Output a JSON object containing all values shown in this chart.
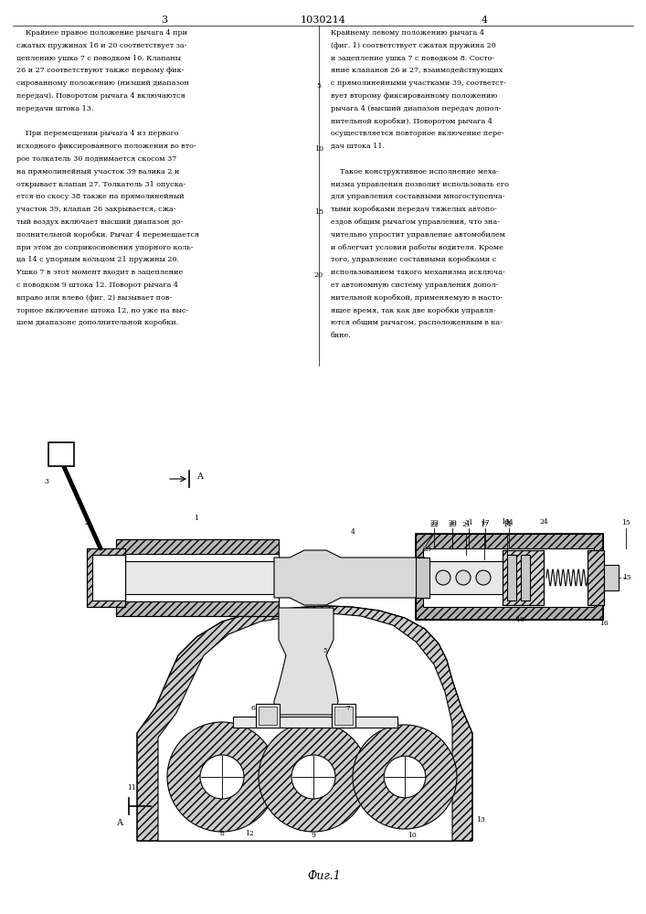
{
  "page_width": 7.07,
  "page_height": 10.0,
  "dpi": 100,
  "bg_color": "#ffffff",
  "text_color": "#000000",
  "line_color": "#000000",
  "header": "1030214",
  "page_left": "3",
  "page_right": "4",
  "fig_label": "Фиг.1",
  "col_left_text": [
    "    Крайнее правое положение рычага 4 при",
    "сжатых пружинах 16 и 20 соответствует за-",
    "цеплению ушка 7 с поводком 10. Клапаны",
    "26 и 27 соответствуют также первому фик-",
    "сированному положению (низший диапазон",
    "передач). Поворотом рычага 4 включаются",
    "передачи штока 13.",
    "",
    "    При перемещении рычага 4 из первого",
    "исходного фиксированного положения во вто-",
    "рое толкатель 30 поднимается скосом 37",
    "на прямолинейный участок 39 валика 2 и",
    "открывает клапан 27. Толкатель 31 опуска-",
    "ется по скосу 38 также на прямолинейный",
    "участок 39, клапан 26 закрывается, сжа-",
    "тый воздух включает высший диапазон до-",
    "полнительной коробки. Рычаг 4 перемещается",
    "при этом до соприкосновения упорного коль-",
    "ца 14 с упорным кольцом 21 пружины 20.",
    "Ушко 7 в этот момент входит в зацепление",
    "с поводком 9 штока 12. Поворот рычага 4",
    "вправо или влево (фиг. 2) вызывает пов-",
    "торное включение штока 12, но уже на выс-",
    "шем диапазоне дополнительной коробки."
  ],
  "col_right_text": [
    "Крайнему левому положению рычага 4",
    "(фиг. 1) соответствует сжатая пружина 20",
    "и зацепление ушка 7 с поводком 8. Состо-",
    "яние клапанов 26 и 27, взаимодействующих",
    "с прямолинейными участками 39, соответст-",
    "вует второму фиксированному положению",
    "рычага 4 (высший диапазон передач допол-",
    "нительной коробки). Поворотом рычага 4",
    "осуществляется повторное включение пере-",
    "дач штока 11.",
    "",
    "    Такое конструктивное исполнение меха-",
    "низма управления позволит использовать его",
    "для управления составными многоступенча-",
    "тыми коробками передач тяжелых автопо-",
    "ездов общим рычагом управления, что зна-",
    "чительно упростит управление автомобилем",
    "и облегчит условия работы водителя. Кроме",
    "того, управление составными коробками с",
    "использованием такого механизма исключа-",
    "ет автономную систему управления допол-",
    "нительной коробкой, применяемую в насто-",
    "ящее время, так как две коробки управля-",
    "ются общим рычагом, расположенным в ка-",
    "бине."
  ],
  "line_number_rows": [
    4,
    9,
    14,
    19
  ],
  "line_number_vals": [
    "5",
    "10",
    "15",
    "20"
  ]
}
